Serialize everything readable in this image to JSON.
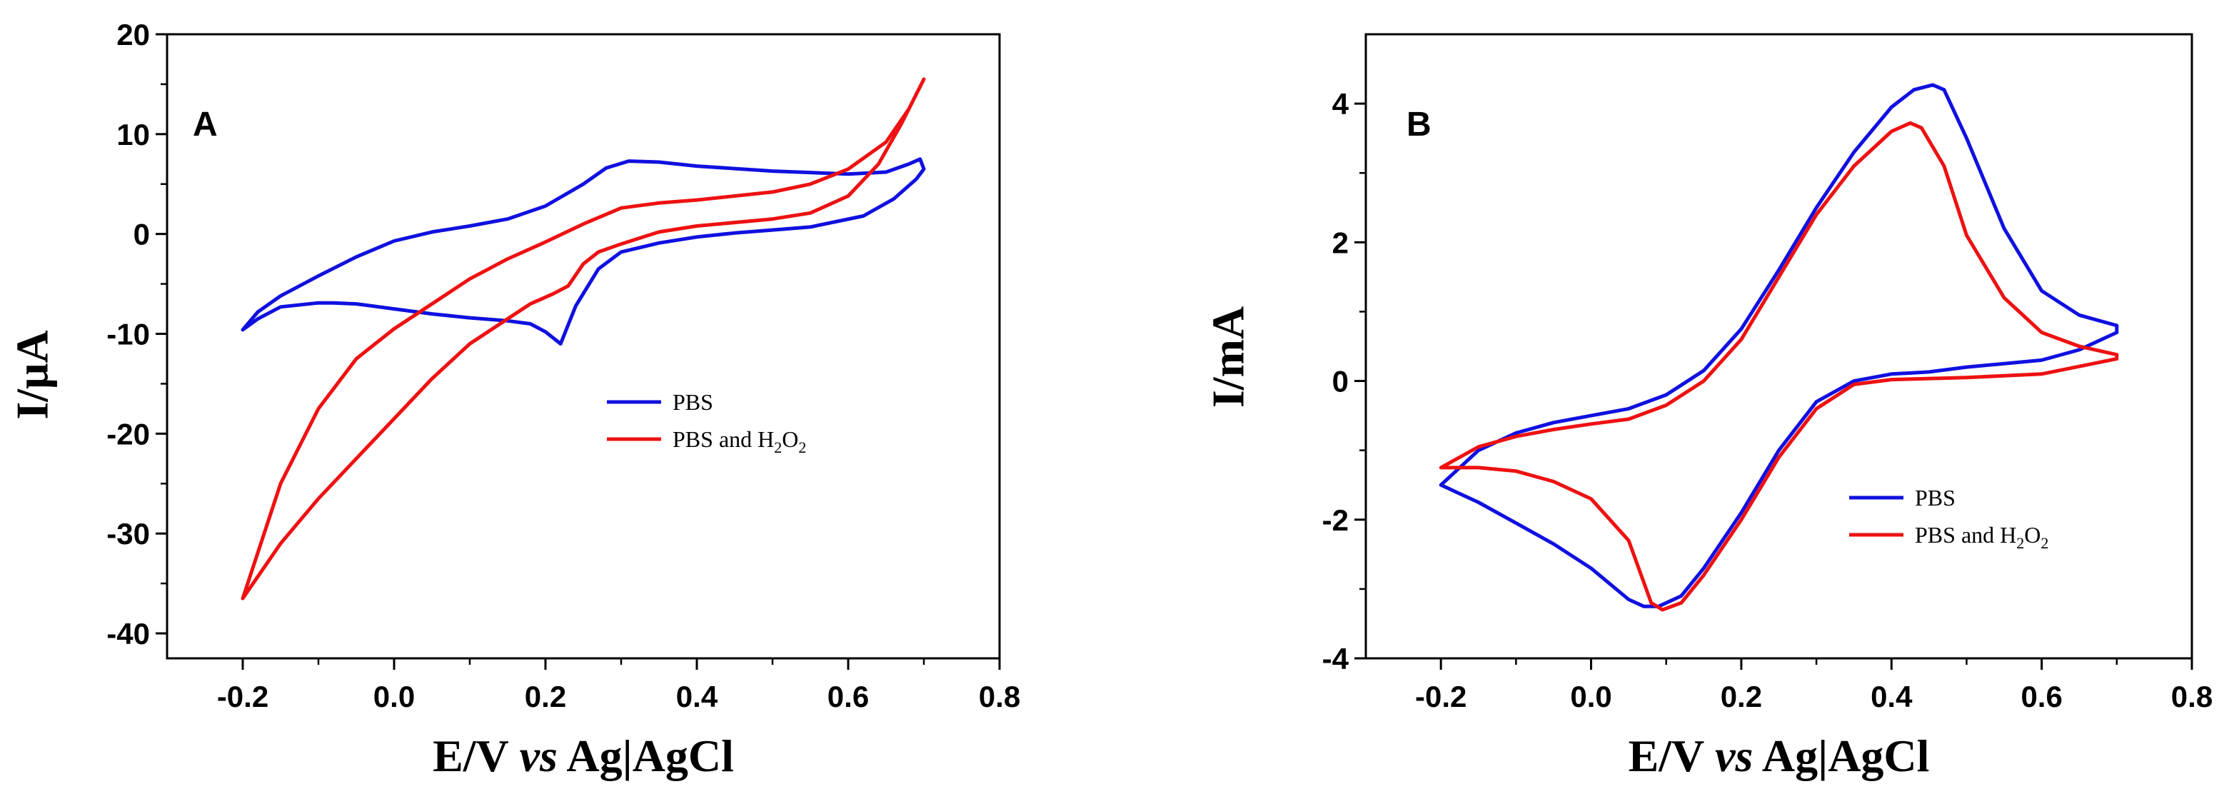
{
  "chart_data": [
    {
      "type": "line",
      "panel_label": "A",
      "xlabel_parts": [
        "E/V ",
        "vs",
        " Ag|AgCl"
      ],
      "ylabel": "I/μA",
      "xlim": [
        -0.3,
        0.8
      ],
      "ylim": [
        -42.5,
        20
      ],
      "xticks": [
        -0.2,
        0.0,
        0.2,
        0.4,
        0.6,
        0.8
      ],
      "xtick_labels": [
        "-0.2",
        "0.0",
        "0.2",
        "0.4",
        "0.6",
        "0.8"
      ],
      "yticks": [
        20,
        10,
        0,
        -10,
        -20,
        -30,
        -40
      ],
      "ytick_labels": [
        "20",
        "10",
        "0",
        "-10",
        "-20",
        "-30",
        "-40"
      ],
      "legend_position": "center-right",
      "series": [
        {
          "name": "PBS",
          "label_parts": [
            "PBS"
          ],
          "color": "#1010e0",
          "points": [
            [
              -0.2,
              -9.6
            ],
            [
              -0.18,
              -7.8
            ],
            [
              -0.15,
              -6.2
            ],
            [
              -0.1,
              -4.2
            ],
            [
              -0.05,
              -2.3
            ],
            [
              0.0,
              -0.7
            ],
            [
              0.05,
              0.2
            ],
            [
              0.1,
              0.8
            ],
            [
              0.15,
              1.5
            ],
            [
              0.2,
              2.8
            ],
            [
              0.25,
              5.0
            ],
            [
              0.28,
              6.6
            ],
            [
              0.31,
              7.3
            ],
            [
              0.35,
              7.2
            ],
            [
              0.4,
              6.8
            ],
            [
              0.5,
              6.3
            ],
            [
              0.6,
              6.0
            ],
            [
              0.65,
              6.2
            ],
            [
              0.68,
              7.0
            ],
            [
              0.695,
              7.5
            ],
            [
              0.7,
              6.5
            ],
            [
              0.69,
              5.5
            ],
            [
              0.66,
              3.5
            ],
            [
              0.62,
              1.8
            ],
            [
              0.55,
              0.7
            ],
            [
              0.5,
              0.4
            ],
            [
              0.45,
              0.1
            ],
            [
              0.4,
              -0.3
            ],
            [
              0.35,
              -0.9
            ],
            [
              0.3,
              -1.8
            ],
            [
              0.27,
              -3.5
            ],
            [
              0.24,
              -7.2
            ],
            [
              0.22,
              -11.0
            ],
            [
              0.2,
              -9.8
            ],
            [
              0.18,
              -9.0
            ],
            [
              0.15,
              -8.7
            ],
            [
              0.1,
              -8.4
            ],
            [
              0.05,
              -8.0
            ],
            [
              0.0,
              -7.5
            ],
            [
              -0.05,
              -7.0
            ],
            [
              -0.08,
              -6.9
            ],
            [
              -0.1,
              -6.9
            ],
            [
              -0.15,
              -7.3
            ],
            [
              -0.18,
              -8.5
            ],
            [
              -0.2,
              -9.6
            ]
          ]
        },
        {
          "name": "PBS and H2O2",
          "label_parts": [
            "PBS and H",
            "2",
            "O",
            "2"
          ],
          "color": "#ee1111",
          "points": [
            [
              -0.2,
              -36.5
            ],
            [
              -0.15,
              -25.0
            ],
            [
              -0.1,
              -17.5
            ],
            [
              -0.05,
              -12.5
            ],
            [
              0.0,
              -9.5
            ],
            [
              0.05,
              -7.0
            ],
            [
              0.1,
              -4.5
            ],
            [
              0.15,
              -2.5
            ],
            [
              0.2,
              -0.8
            ],
            [
              0.25,
              1.0
            ],
            [
              0.3,
              2.6
            ],
            [
              0.35,
              3.1
            ],
            [
              0.4,
              3.4
            ],
            [
              0.5,
              4.2
            ],
            [
              0.55,
              5.0
            ],
            [
              0.6,
              6.5
            ],
            [
              0.65,
              9.2
            ],
            [
              0.68,
              12.5
            ],
            [
              0.7,
              15.5
            ],
            [
              0.69,
              14.0
            ],
            [
              0.67,
              11.0
            ],
            [
              0.64,
              7.0
            ],
            [
              0.6,
              3.8
            ],
            [
              0.55,
              2.1
            ],
            [
              0.5,
              1.5
            ],
            [
              0.4,
              0.8
            ],
            [
              0.35,
              0.2
            ],
            [
              0.3,
              -1.0
            ],
            [
              0.27,
              -1.8
            ],
            [
              0.25,
              -3.0
            ],
            [
              0.23,
              -5.2
            ],
            [
              0.21,
              -6.0
            ],
            [
              0.18,
              -7.0
            ],
            [
              0.15,
              -8.5
            ],
            [
              0.1,
              -11.0
            ],
            [
              0.05,
              -14.5
            ],
            [
              0.0,
              -18.5
            ],
            [
              -0.05,
              -22.5
            ],
            [
              -0.1,
              -26.5
            ],
            [
              -0.15,
              -31.0
            ],
            [
              -0.2,
              -36.5
            ]
          ]
        }
      ]
    },
    {
      "type": "line",
      "panel_label": "B",
      "xlabel_parts": [
        "E/V ",
        "vs",
        " Ag|AgCl"
      ],
      "ylabel": "I/mA",
      "xlim": [
        -0.3,
        0.8
      ],
      "ylim": [
        -4,
        5
      ],
      "xticks": [
        -0.2,
        0.0,
        0.2,
        0.4,
        0.6,
        0.8
      ],
      "xtick_labels": [
        "-0.2",
        "0.0",
        "0.2",
        "0.4",
        "0.6",
        "0.8"
      ],
      "yticks": [
        4,
        2,
        0,
        -2,
        -4
      ],
      "ytick_labels": [
        "4",
        "2",
        "0",
        "-2",
        "-4"
      ],
      "legend_position": "lower-right",
      "series": [
        {
          "name": "PBS",
          "label_parts": [
            "PBS"
          ],
          "color": "#1010e0",
          "points": [
            [
              -0.2,
              -1.5
            ],
            [
              -0.15,
              -1.0
            ],
            [
              -0.1,
              -0.75
            ],
            [
              -0.05,
              -0.6
            ],
            [
              0.0,
              -0.5
            ],
            [
              0.05,
              -0.4
            ],
            [
              0.1,
              -0.2
            ],
            [
              0.15,
              0.15
            ],
            [
              0.2,
              0.75
            ],
            [
              0.25,
              1.6
            ],
            [
              0.3,
              2.5
            ],
            [
              0.35,
              3.3
            ],
            [
              0.4,
              3.95
            ],
            [
              0.43,
              4.2
            ],
            [
              0.455,
              4.27
            ],
            [
              0.47,
              4.2
            ],
            [
              0.5,
              3.5
            ],
            [
              0.55,
              2.2
            ],
            [
              0.6,
              1.3
            ],
            [
              0.65,
              0.95
            ],
            [
              0.7,
              0.8
            ],
            [
              0.7,
              0.7
            ],
            [
              0.65,
              0.45
            ],
            [
              0.6,
              0.3
            ],
            [
              0.5,
              0.2
            ],
            [
              0.45,
              0.13
            ],
            [
              0.4,
              0.1
            ],
            [
              0.35,
              0.0
            ],
            [
              0.3,
              -0.3
            ],
            [
              0.25,
              -1.0
            ],
            [
              0.2,
              -1.9
            ],
            [
              0.15,
              -2.7
            ],
            [
              0.12,
              -3.1
            ],
            [
              0.09,
              -3.25
            ],
            [
              0.07,
              -3.25
            ],
            [
              0.05,
              -3.15
            ],
            [
              0.0,
              -2.7
            ],
            [
              -0.05,
              -2.35
            ],
            [
              -0.1,
              -2.05
            ],
            [
              -0.15,
              -1.75
            ],
            [
              -0.2,
              -1.5
            ]
          ]
        },
        {
          "name": "PBS and H2O2",
          "label_parts": [
            "PBS and H",
            "2",
            "O",
            "2"
          ],
          "color": "#ee1111",
          "points": [
            [
              -0.2,
              -1.25
            ],
            [
              -0.15,
              -0.95
            ],
            [
              -0.1,
              -0.8
            ],
            [
              -0.05,
              -0.7
            ],
            [
              0.0,
              -0.62
            ],
            [
              0.05,
              -0.55
            ],
            [
              0.1,
              -0.35
            ],
            [
              0.15,
              0.0
            ],
            [
              0.2,
              0.6
            ],
            [
              0.25,
              1.5
            ],
            [
              0.3,
              2.4
            ],
            [
              0.35,
              3.1
            ],
            [
              0.4,
              3.6
            ],
            [
              0.425,
              3.72
            ],
            [
              0.44,
              3.65
            ],
            [
              0.47,
              3.1
            ],
            [
              0.5,
              2.1
            ],
            [
              0.55,
              1.2
            ],
            [
              0.6,
              0.7
            ],
            [
              0.65,
              0.5
            ],
            [
              0.7,
              0.38
            ],
            [
              0.7,
              0.32
            ],
            [
              0.6,
              0.1
            ],
            [
              0.5,
              0.05
            ],
            [
              0.4,
              0.02
            ],
            [
              0.35,
              -0.05
            ],
            [
              0.3,
              -0.4
            ],
            [
              0.25,
              -1.1
            ],
            [
              0.2,
              -2.0
            ],
            [
              0.15,
              -2.8
            ],
            [
              0.12,
              -3.2
            ],
            [
              0.095,
              -3.3
            ],
            [
              0.08,
              -3.2
            ],
            [
              0.07,
              -2.9
            ],
            [
              0.05,
              -2.3
            ],
            [
              0.0,
              -1.7
            ],
            [
              -0.05,
              -1.45
            ],
            [
              -0.1,
              -1.3
            ],
            [
              -0.15,
              -1.25
            ],
            [
              -0.2,
              -1.25
            ]
          ]
        }
      ]
    }
  ]
}
